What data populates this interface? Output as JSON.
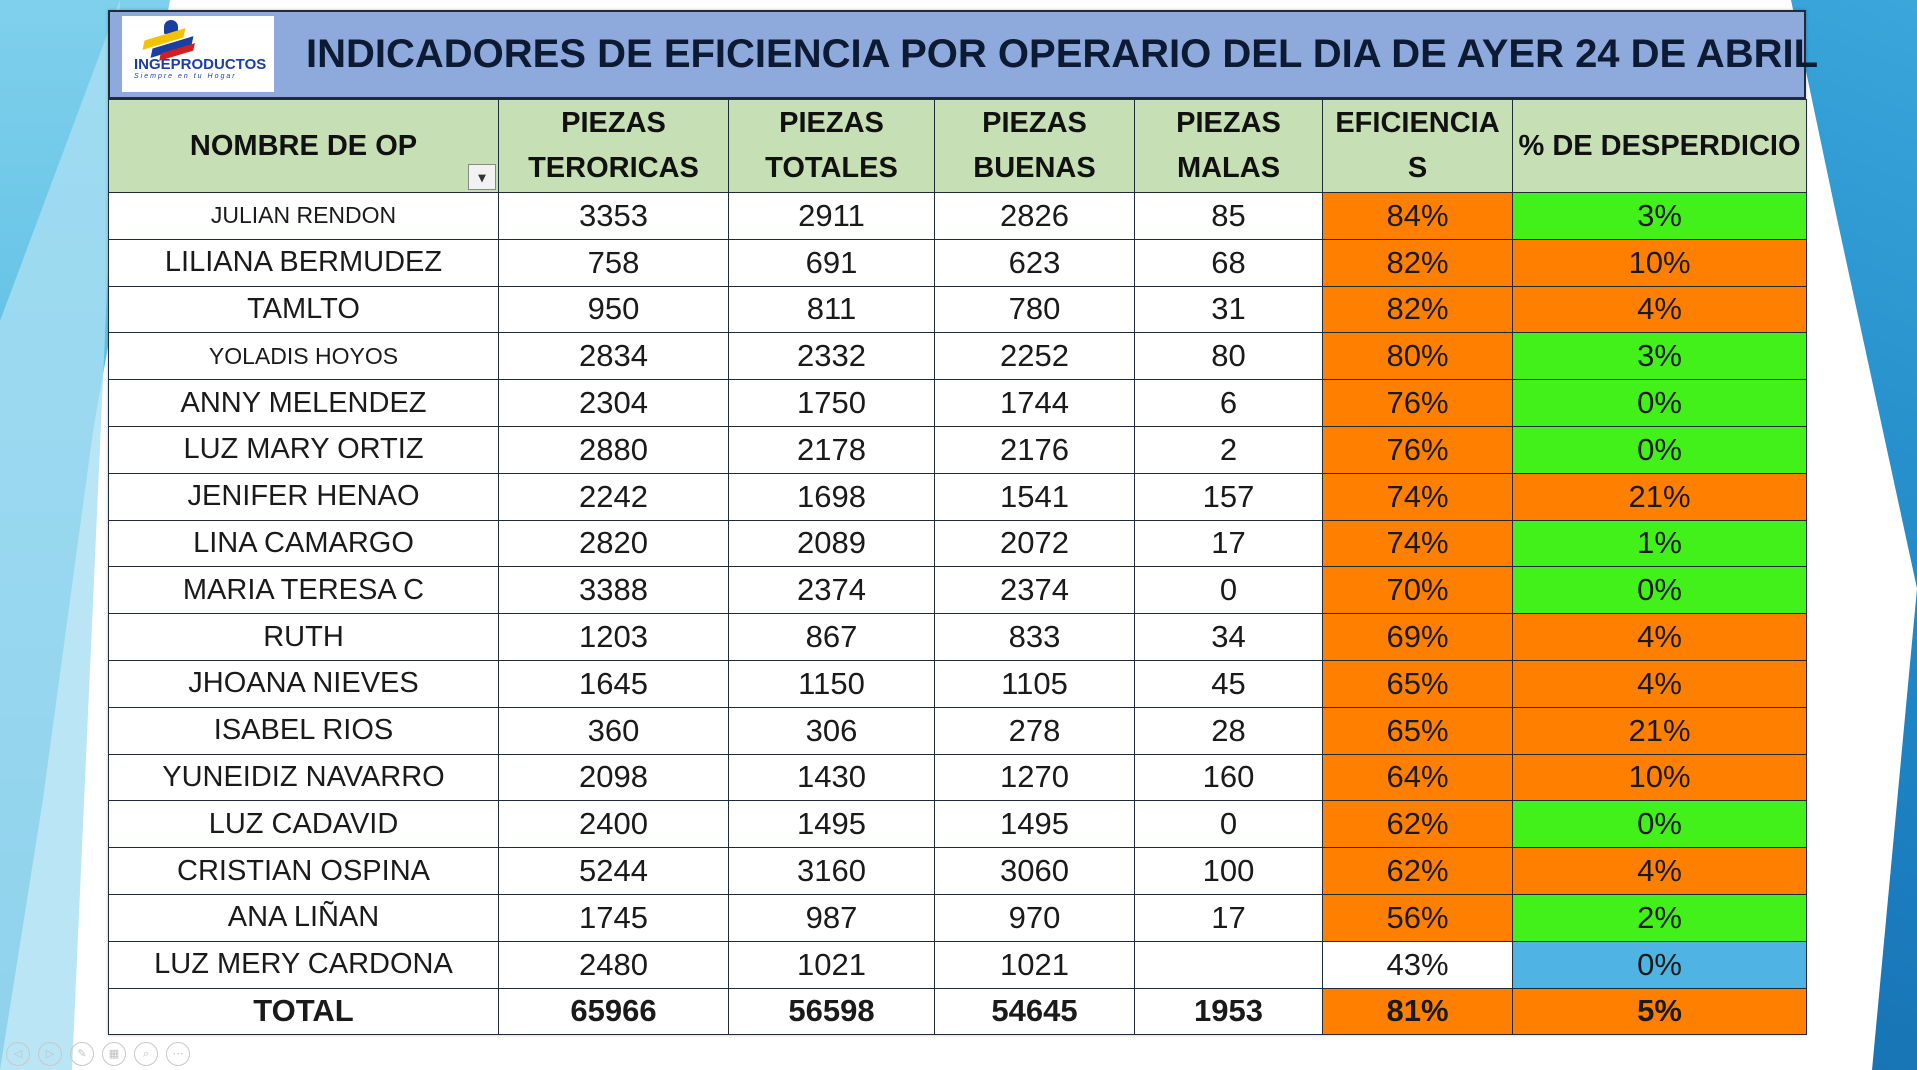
{
  "title": "INDICADORES DE EFICIENCIA POR OPERARIO DEL DIA DE AYER 24 DE ABRIL",
  "logo": {
    "name": "INGEPRODUCTOS",
    "tagline": "Siempre en tu Hogar"
  },
  "headers": {
    "name": "NOMBRE DE OP",
    "teoricas": "PIEZAS TERORICAS",
    "totales": "PIEZAS TOTALES",
    "buenas": "PIEZAS BUENAS",
    "malas": "PIEZAS MALAS",
    "eficiencia": "EFICIENCIA S",
    "desperdicio": "% DE DESPERDICIO"
  },
  "filter_icon": "filter-sort-icon",
  "rows": [
    {
      "name": "JULIAN RENDON",
      "teoricas": "3353",
      "totales": "2911",
      "buenas": "2826",
      "malas": "85",
      "eficiencia": "84%",
      "desperdicio": "3%",
      "ef_color": "orange",
      "de_color": "green",
      "small": true
    },
    {
      "name": "LILIANA BERMUDEZ",
      "teoricas": "758",
      "totales": "691",
      "buenas": "623",
      "malas": "68",
      "eficiencia": "82%",
      "desperdicio": "10%",
      "ef_color": "orange",
      "de_color": "orange"
    },
    {
      "name": "TAMLTO",
      "teoricas": "950",
      "totales": "811",
      "buenas": "780",
      "malas": "31",
      "eficiencia": "82%",
      "desperdicio": "4%",
      "ef_color": "orange",
      "de_color": "orange"
    },
    {
      "name": "YOLADIS HOYOS",
      "teoricas": "2834",
      "totales": "2332",
      "buenas": "2252",
      "malas": "80",
      "eficiencia": "80%",
      "desperdicio": "3%",
      "ef_color": "orange",
      "de_color": "green",
      "small": true
    },
    {
      "name": "ANNY MELENDEZ",
      "teoricas": "2304",
      "totales": "1750",
      "buenas": "1744",
      "malas": "6",
      "eficiencia": "76%",
      "desperdicio": "0%",
      "ef_color": "orange",
      "de_color": "green"
    },
    {
      "name": "LUZ MARY ORTIZ",
      "teoricas": "2880",
      "totales": "2178",
      "buenas": "2176",
      "malas": "2",
      "eficiencia": "76%",
      "desperdicio": "0%",
      "ef_color": "orange",
      "de_color": "green"
    },
    {
      "name": "JENIFER HENAO",
      "teoricas": "2242",
      "totales": "1698",
      "buenas": "1541",
      "malas": "157",
      "eficiencia": "74%",
      "desperdicio": "21%",
      "ef_color": "orange",
      "de_color": "orange"
    },
    {
      "name": "LINA CAMARGO",
      "teoricas": "2820",
      "totales": "2089",
      "buenas": "2072",
      "malas": "17",
      "eficiencia": "74%",
      "desperdicio": "1%",
      "ef_color": "orange",
      "de_color": "green"
    },
    {
      "name": "MARIA TERESA C",
      "teoricas": "3388",
      "totales": "2374",
      "buenas": "2374",
      "malas": "0",
      "eficiencia": "70%",
      "desperdicio": "0%",
      "ef_color": "orange",
      "de_color": "green"
    },
    {
      "name": "RUTH",
      "teoricas": "1203",
      "totales": "867",
      "buenas": "833",
      "malas": "34",
      "eficiencia": "69%",
      "desperdicio": "4%",
      "ef_color": "orange",
      "de_color": "orange"
    },
    {
      "name": "JHOANA NIEVES",
      "teoricas": "1645",
      "totales": "1150",
      "buenas": "1105",
      "malas": "45",
      "eficiencia": "65%",
      "desperdicio": "4%",
      "ef_color": "orange",
      "de_color": "orange"
    },
    {
      "name": "ISABEL RIOS",
      "teoricas": "360",
      "totales": "306",
      "buenas": "278",
      "malas": "28",
      "eficiencia": "65%",
      "desperdicio": "21%",
      "ef_color": "orange",
      "de_color": "orange"
    },
    {
      "name": "YUNEIDIZ NAVARRO",
      "teoricas": "2098",
      "totales": "1430",
      "buenas": "1270",
      "malas": "160",
      "eficiencia": "64%",
      "desperdicio": "10%",
      "ef_color": "orange",
      "de_color": "orange"
    },
    {
      "name": "LUZ CADAVID",
      "teoricas": "2400",
      "totales": "1495",
      "buenas": "1495",
      "malas": "0",
      "eficiencia": "62%",
      "desperdicio": "0%",
      "ef_color": "orange",
      "de_color": "green"
    },
    {
      "name": "CRISTIAN OSPINA",
      "teoricas": "5244",
      "totales": "3160",
      "buenas": "3060",
      "malas": "100",
      "eficiencia": "62%",
      "desperdicio": "4%",
      "ef_color": "orange",
      "de_color": "orange"
    },
    {
      "name": "ANA LIÑAN",
      "teoricas": "1745",
      "totales": "987",
      "buenas": "970",
      "malas": "17",
      "eficiencia": "56%",
      "desperdicio": "2%",
      "ef_color": "orange",
      "de_color": "green"
    },
    {
      "name": "LUZ MERY CARDONA",
      "teoricas": "2480",
      "totales": "1021",
      "buenas": "1021",
      "malas": "",
      "eficiencia": "43%",
      "desperdicio": "0%",
      "ef_color": "none",
      "de_color": "blue"
    }
  ],
  "total": {
    "label": "TOTAL",
    "teoricas": "65966",
    "totales": "56598",
    "buenas": "54645",
    "malas": "1953",
    "eficiencia": "81%",
    "desperdicio": "5%"
  },
  "colors": {
    "orange": "#ff8000",
    "green": "#43f11a",
    "header_green": "#c7dfb4",
    "title_blue": "#8eaadc"
  },
  "nav_icons": [
    "previous-icon",
    "next-icon",
    "pen-icon",
    "slides-icon",
    "zoom-icon",
    "more-icon"
  ]
}
